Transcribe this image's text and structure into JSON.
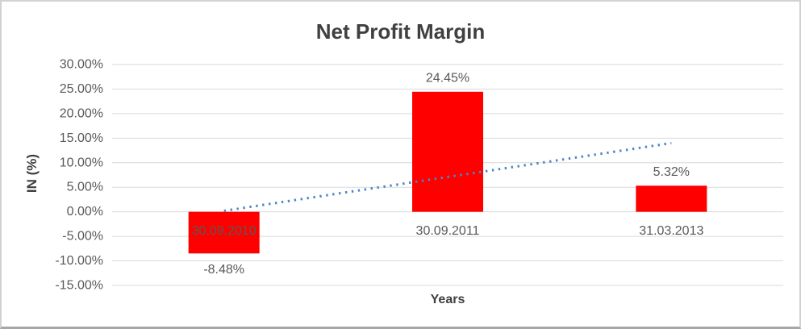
{
  "chart_data": {
    "type": "bar",
    "title": "Net Profit Margin",
    "xlabel": "Years",
    "ylabel": "IN (%)",
    "categories": [
      "30.09.2010",
      "30.09.2011",
      "31.03.2013"
    ],
    "values": [
      -8.48,
      24.45,
      5.32
    ],
    "data_labels": [
      "-8.48%",
      "24.45%",
      "5.32%"
    ],
    "ylim": [
      -15,
      30
    ],
    "ytick_step": 5,
    "yticks": [
      {
        "value": 30,
        "label": "30.00%"
      },
      {
        "value": 25,
        "label": "25.00%"
      },
      {
        "value": 20,
        "label": "20.00%"
      },
      {
        "value": 15,
        "label": "15.00%"
      },
      {
        "value": 10,
        "label": "10.00%"
      },
      {
        "value": 5,
        "label": "5.00%"
      },
      {
        "value": 0,
        "label": "0.00%"
      },
      {
        "value": -5,
        "label": "-5.00%"
      },
      {
        "value": -10,
        "label": "-10.00%"
      },
      {
        "value": -15,
        "label": "-15.00%"
      }
    ],
    "grid": true,
    "legend": "none",
    "colors": {
      "bar": "#ff0000",
      "gridline": "#d9d9d9",
      "axis_text": "#595959",
      "title_text": "#404040",
      "trendline": "#4a86c8"
    },
    "trendline": {
      "type": "linear",
      "style": "dotted",
      "start_value": 0.2,
      "end_value": 14.0
    }
  }
}
